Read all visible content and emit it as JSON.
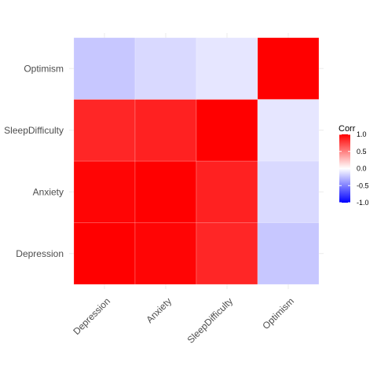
{
  "chart_data": {
    "type": "heatmap",
    "title": "",
    "xlabel": "",
    "ylabel": "",
    "variables": [
      "Depression",
      "Anxiety",
      "SleepDifficulty",
      "Optimism"
    ],
    "x_categories": [
      "Depression",
      "Anxiety",
      "SleepDifficulty",
      "Optimism"
    ],
    "y_categories": [
      "Depression",
      "Anxiety",
      "SleepDifficulty",
      "Optimism"
    ],
    "matrix": [
      [
        1.0,
        0.98,
        0.85,
        -0.22
      ],
      [
        0.98,
        1.0,
        0.87,
        -0.15
      ],
      [
        0.85,
        0.87,
        1.0,
        -0.1
      ],
      [
        -0.22,
        -0.15,
        -0.1,
        1.0
      ]
    ],
    "legend": {
      "title": "Corr",
      "ticks": [
        1.0,
        0.5,
        0.0,
        -0.5,
        -1.0
      ],
      "tick_labels": [
        "1.0",
        "0.5",
        "0.0",
        "-0.5",
        "-1.0"
      ],
      "limits": [
        -1,
        1
      ],
      "placement": "right"
    },
    "colors": {
      "low": "#0000FF",
      "mid": "#FFFFFF",
      "high": "#FF0000",
      "grid": "#EBEBEB",
      "text": "#4D4D4D",
      "legend_text": "#000000"
    },
    "grid": true
  }
}
